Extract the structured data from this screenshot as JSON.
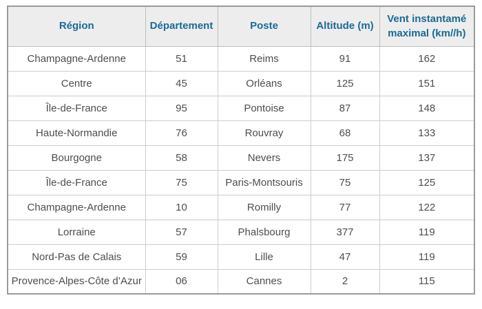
{
  "table": {
    "columns": [
      {
        "key": "region",
        "label": "Région"
      },
      {
        "key": "departement",
        "label": "Département"
      },
      {
        "key": "poste",
        "label": "Poste"
      },
      {
        "key": "altitude",
        "label": "Altitude (m)"
      },
      {
        "key": "vent",
        "label": "Vent instantamé maximal (km//h)"
      }
    ],
    "rows": [
      [
        "Champagne-Ardenne",
        "51",
        "Reims",
        "91",
        "162"
      ],
      [
        "Centre",
        "45",
        "Orléans",
        "125",
        "151"
      ],
      [
        "Île-de-France",
        "95",
        "Pontoise",
        "87",
        "148"
      ],
      [
        "Haute-Normandie",
        "76",
        "Rouvray",
        "68",
        "133"
      ],
      [
        "Bourgogne",
        "58",
        "Nevers",
        "175",
        "137"
      ],
      [
        "Île-de-France",
        "75",
        "Paris-Montsouris",
        "75",
        "125"
      ],
      [
        "Champagne-Ardenne",
        "10",
        "Romilly",
        "77",
        "122"
      ],
      [
        "Lorraine",
        "57",
        "Phalsbourg",
        "377",
        "119"
      ],
      [
        "Nord-Pas de Calais",
        "59",
        "Lille",
        "47",
        "119"
      ],
      [
        "Provence-Alpes-Côte d’Azur",
        "06",
        "Cannes",
        "2",
        "115"
      ]
    ]
  },
  "colors": {
    "header_text": "#1a6a96",
    "header_background": "#ededed",
    "body_text": "#4d4d4d",
    "inner_border": "#cccccc",
    "outer_border": "#9a9a9a"
  }
}
